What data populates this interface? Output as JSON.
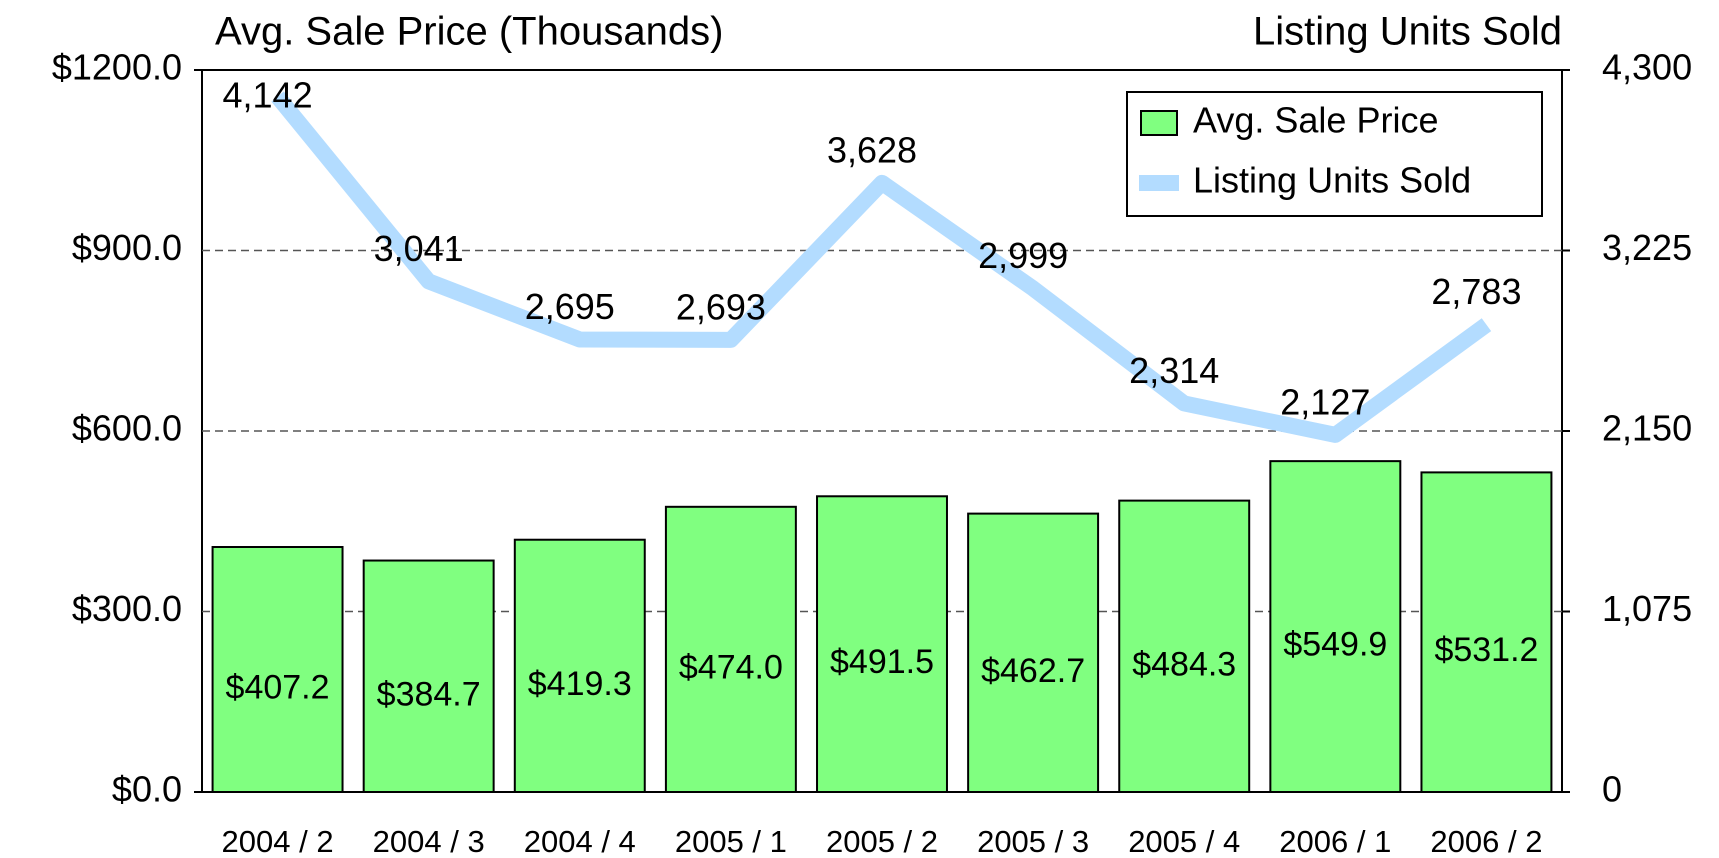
{
  "chart_data": {
    "type": "bar",
    "y_axis_title": "Avg. Sale Price (Thousands)",
    "y2_axis_title": "Listing Units Sold",
    "categories": [
      "2004 / 2",
      "2004 / 3",
      "2004 / 4",
      "2005 / 1",
      "2005 / 2",
      "2005 / 3",
      "2005 / 4",
      "2006 / 1",
      "2006 / 2"
    ],
    "series": [
      {
        "name": "Avg. Sale Price",
        "type": "bar",
        "color": "#80ff80",
        "values": [
          407.2,
          384.7,
          419.3,
          474.0,
          491.5,
          462.7,
          484.3,
          549.9,
          531.2
        ],
        "value_labels": [
          "$407.2",
          "$384.7",
          "$419.3",
          "$474.0",
          "$491.5",
          "$462.7",
          "$484.3",
          "$549.9",
          "$531.2"
        ]
      },
      {
        "name": "Listing Units Sold",
        "type": "line",
        "axis": "y2",
        "color": "#b3dcff",
        "values": [
          4142,
          3041,
          2695,
          2693,
          3628,
          2999,
          2314,
          2127,
          2783
        ],
        "value_labels": [
          "4,142",
          "3,041",
          "2,695",
          "2,693",
          "3,628",
          "2,999",
          "2,314",
          "2,127",
          "2,783"
        ]
      }
    ],
    "ylim": [
      0,
      1200
    ],
    "yticks": [
      {
        "value": 0,
        "label": "$0.0"
      },
      {
        "value": 300,
        "label": "$300.0"
      },
      {
        "value": 600,
        "label": "$600.0"
      },
      {
        "value": 900,
        "label": "$900.0"
      },
      {
        "value": 1200,
        "label": "$1200.0"
      }
    ],
    "y2lim": [
      0,
      4300
    ],
    "y2ticks": [
      0,
      {
        "value": 1075,
        "label": "1,075"
      },
      {
        "value": 2150,
        "label": "2,150"
      },
      {
        "value": 3225,
        "label": "3,225"
      },
      {
        "value": 4300,
        "label": "4,300"
      }
    ],
    "grid": true,
    "legend": "upper right"
  }
}
